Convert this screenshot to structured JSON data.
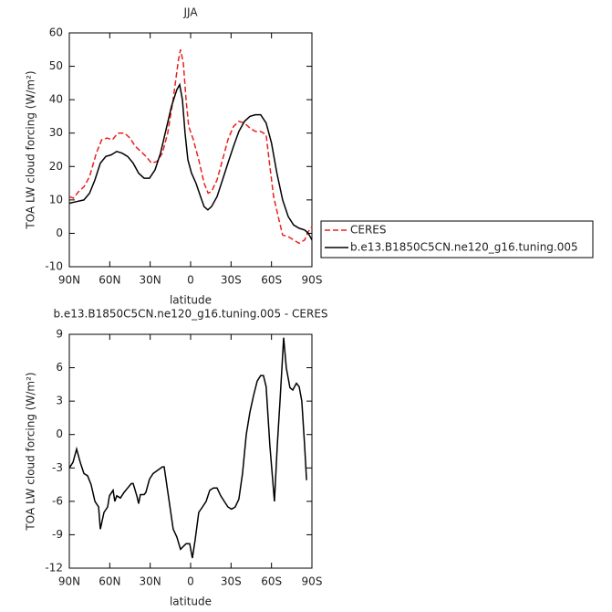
{
  "chart_data": [
    {
      "type": "line",
      "title": "JJA",
      "xlabel": "latitude",
      "ylabel": "TOA LW cloud forcing (W/m²)",
      "xlim": [
        90,
        -90
      ],
      "xticks": [
        {
          "value": 90,
          "label": "90N"
        },
        {
          "value": 60,
          "label": "60N"
        },
        {
          "value": 30,
          "label": "30N"
        },
        0,
        {
          "value": -30,
          "label": "30S"
        },
        {
          "value": -60,
          "label": "60S"
        },
        {
          "value": -90,
          "label": "90S"
        }
      ],
      "ylim": [
        -10,
        60
      ],
      "yticks": [
        -10,
        0,
        10,
        20,
        30,
        40,
        50,
        60
      ],
      "legend": "right",
      "series": [
        {
          "name": "CERES",
          "color": "#e8211d",
          "dash": true,
          "x": [
            90,
            87,
            83,
            79,
            75,
            70,
            66,
            62,
            58,
            54,
            49,
            45,
            41,
            37,
            33,
            29,
            25,
            21,
            17,
            13,
            9,
            7.5,
            5.4,
            3.4,
            1.4,
            -2,
            -6,
            -10,
            -13,
            -15.5,
            -19.6,
            -23.7,
            -27.7,
            -31.8,
            -35.8,
            -39.9,
            -44,
            -48,
            -52,
            -56,
            -58.8,
            -61.6,
            -65.6,
            -68.3,
            -72.4,
            -76.4,
            -80.5,
            -84.6,
            -87.3,
            -90
          ],
          "values": [
            11,
            10.5,
            12.5,
            14,
            17,
            24,
            28,
            28.5,
            28,
            30,
            30,
            28.5,
            26,
            24.5,
            23,
            21,
            21.5,
            24,
            30,
            40,
            52,
            55,
            51,
            40,
            32,
            28,
            22,
            15,
            12,
            12.5,
            16,
            22,
            28,
            32,
            33.5,
            33,
            31.5,
            30.5,
            30.5,
            29.5,
            20,
            11,
            4,
            -0.5,
            -1,
            -2,
            -3,
            -2,
            0.5,
            2
          ]
        },
        {
          "name": "b.e13.B1850C5CN.ne120_g16.tuning.005",
          "color": "#000000",
          "dash": false,
          "x": [
            90,
            84.6,
            79.2,
            75,
            71,
            67,
            62.9,
            58.9,
            54.8,
            50.8,
            46.7,
            42.6,
            38.6,
            34.5,
            30.5,
            26.4,
            22.3,
            18.3,
            14.2,
            10.2,
            8.1,
            6.1,
            4.1,
            2,
            -0.7,
            -4,
            -7.4,
            -10,
            -12.8,
            -15.5,
            -19.6,
            -23.7,
            -27.7,
            -31.8,
            -35.8,
            -39.9,
            -44,
            -48,
            -52,
            -56,
            -60,
            -64,
            -68.3,
            -72.4,
            -76.4,
            -80.5,
            -84.6,
            -87.3,
            -90
          ],
          "values": [
            9,
            9.5,
            10,
            12,
            16,
            21,
            23,
            23.5,
            24.5,
            24,
            23,
            21,
            18,
            16.5,
            16.5,
            19,
            24,
            31,
            38,
            43,
            44.5,
            40,
            30,
            22,
            18,
            15,
            11,
            8,
            7,
            8,
            11,
            16,
            21,
            26,
            30.5,
            33.5,
            35,
            35.5,
            35.5,
            33,
            27,
            18,
            10,
            5,
            2.5,
            1.5,
            1,
            0,
            -2
          ]
        }
      ]
    },
    {
      "type": "line",
      "title": "b.e13.B1850C5CN.ne120_g16.tuning.005 - CERES",
      "xlabel": "latitude",
      "ylabel": "TOA LW cloud forcing (W/m²)",
      "xlim": [
        90,
        -90
      ],
      "xticks": [
        {
          "value": 90,
          "label": "90N"
        },
        {
          "value": 60,
          "label": "60N"
        },
        {
          "value": 30,
          "label": "30N"
        },
        0,
        {
          "value": -30,
          "label": "30S"
        },
        {
          "value": -60,
          "label": "60S"
        },
        {
          "value": -90,
          "label": "90S"
        }
      ],
      "ylim": [
        -12,
        9
      ],
      "yticks": [
        -12,
        -9,
        -6,
        -3,
        0,
        3,
        6,
        9
      ],
      "series": [
        {
          "color": "#000000",
          "x": [
            90,
            87.3,
            84.6,
            81.9,
            79.2,
            76.5,
            73.8,
            71,
            68.3,
            67,
            64.3,
            61.6,
            60.2,
            57.5,
            56.2,
            54.8,
            52.1,
            49.4,
            46.7,
            44,
            42.6,
            39.9,
            38.6,
            37.3,
            34.5,
            33.2,
            30.5,
            27.8,
            21,
            19.6,
            12.9,
            10.2,
            7.5,
            3.4,
            0.7,
            -1.3,
            -3.3,
            -6,
            -8.8,
            -11.5,
            -14.2,
            -16.9,
            -19.6,
            -22.3,
            -25,
            -27.7,
            -30.4,
            -33.1,
            -35.8,
            -38.5,
            -41.3,
            -44,
            -46.7,
            -49.4,
            -52,
            -54,
            -56,
            -58.8,
            -62.2,
            -64.3,
            -66.3,
            -69,
            -71,
            -73.7,
            -75.8,
            -78.5,
            -80.5,
            -82.5,
            -84.6,
            -86
          ],
          "values": [
            -3,
            -2.5,
            -1.3,
            -2.5,
            -3.5,
            -3.7,
            -4.5,
            -6,
            -6.5,
            -8.5,
            -7,
            -6.5,
            -5.5,
            -5,
            -6,
            -5.5,
            -5.7,
            -5.2,
            -4.8,
            -4.4,
            -4.4,
            -5.5,
            -6.2,
            -5.4,
            -5.4,
            -5.2,
            -4,
            -3.5,
            -2.9,
            -2.9,
            -8.5,
            -9.2,
            -10.3,
            -9.8,
            -9.8,
            -11.1,
            -9.5,
            -7,
            -6.5,
            -6,
            -5,
            -4.8,
            -4.8,
            -5.5,
            -6,
            -6.5,
            -6.7,
            -6.5,
            -5.8,
            -3.5,
            0,
            2,
            3.5,
            4.8,
            5.3,
            5.3,
            4.3,
            -1,
            -6,
            -1,
            3,
            8.7,
            6,
            4.2,
            4,
            4.6,
            4.3,
            3,
            -1,
            -4.1
          ]
        }
      ]
    }
  ]
}
